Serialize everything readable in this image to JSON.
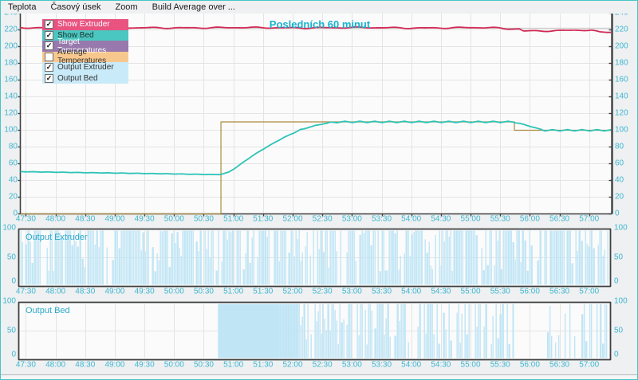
{
  "menu": {
    "items": [
      {
        "label": "Teplota"
      },
      {
        "label": "Časový úsek"
      },
      {
        "label": "Zoom"
      },
      {
        "label": "Build Average over ..."
      }
    ]
  },
  "legend": {
    "items": [
      {
        "label": "Show Extruder",
        "checked": true,
        "bg": "#e85380",
        "text": "#ffffff"
      },
      {
        "label": "Show Bed",
        "checked": true,
        "bg": "#4ac7c0",
        "text": "#20302f"
      },
      {
        "label": "Target Temperatures",
        "checked": true,
        "bg": "#9879ad",
        "text": "#ffffff"
      },
      {
        "label": "Average Temperatures",
        "checked": false,
        "bg": "#f7c88e",
        "text": "#333333"
      },
      {
        "label": "Output Extruder",
        "checked": true,
        "bg": "#c9eaf8",
        "text": "#333333"
      },
      {
        "label": "Output Bed",
        "checked": true,
        "bg": "#c9eaf8",
        "text": "#333333"
      }
    ]
  },
  "chart_data": [
    {
      "id": "temperature",
      "type": "line",
      "title": "Posledních 60 minut",
      "x_tick_labels": [
        "47:30",
        "48:00",
        "48:30",
        "49:00",
        "49:30",
        "50:00",
        "50:30",
        "51:00",
        "51:30",
        "52:00",
        "52:30",
        "53:00",
        "53:30",
        "54:00",
        "54:30",
        "55:00",
        "55:30",
        "56:00",
        "56:30",
        "57:00"
      ],
      "x_domain_seconds": [
        2844,
        3442
      ],
      "y_ticks": [
        0,
        20,
        40,
        60,
        80,
        100,
        120,
        140,
        160,
        180,
        200,
        220,
        240
      ],
      "ylim": [
        0,
        241
      ],
      "grid": true,
      "axis_label_color": "#3fb6d2",
      "series": [
        {
          "name": "target-extruder",
          "color": "#c7c7c7",
          "width": 1.2,
          "points": [
            [
              2844,
              222
            ],
            [
              3442,
              222
            ]
          ]
        },
        {
          "name": "target-bed",
          "color": "#ab8a3e",
          "width": 1.2,
          "points": [
            [
              2844,
              0
            ],
            [
              3047,
              0
            ],
            [
              3047,
              110
            ],
            [
              3344,
              110
            ],
            [
              3344,
              100
            ],
            [
              3442,
              100
            ]
          ]
        },
        {
          "name": "bed",
          "color": "#2ec3b7",
          "width": 1.8,
          "ripple": {
            "amp": 0.85,
            "period": 15
          },
          "points": [
            [
              2844,
              50.5
            ],
            [
              2900,
              49.5
            ],
            [
              2990,
              48
            ],
            [
              3040,
              47
            ],
            [
              3047,
              47.2
            ],
            [
              3055,
              50
            ],
            [
              3063,
              56
            ],
            [
              3071,
              63
            ],
            [
              3079,
              69.5
            ],
            [
              3087,
              75.5
            ],
            [
              3095,
              81
            ],
            [
              3103,
              86.5
            ],
            [
              3111,
              91.5
            ],
            [
              3119,
              96
            ],
            [
              3127,
              100
            ],
            [
              3135,
              103.2
            ],
            [
              3143,
              105.8
            ],
            [
              3151,
              107.8
            ],
            [
              3159,
              109.2
            ],
            [
              3167,
              110
            ],
            [
              3344,
              110
            ],
            [
              3374,
              100
            ],
            [
              3442,
              100
            ]
          ]
        },
        {
          "name": "extruder",
          "color": "#d22a56",
          "width": 1.8,
          "wiggle": {
            "a": [
              0.5,
              0.35,
              0.25
            ],
            "f": [
              0.18,
              0.053,
              0.31
            ],
            "p": [
              0,
              2,
              1
            ]
          },
          "points": [
            [
              2844,
              222.3
            ],
            [
              2900,
              222.8
            ],
            [
              2960,
              222.2
            ],
            [
              3020,
              222.8
            ],
            [
              3080,
              222.4
            ],
            [
              3140,
              222.8
            ],
            [
              3200,
              222.4
            ],
            [
              3260,
              222.6
            ],
            [
              3320,
              222.4
            ],
            [
              3336,
              221.3
            ],
            [
              3349,
              221.4
            ],
            [
              3353,
              218.9
            ],
            [
              3380,
              219.2
            ],
            [
              3410,
              219.6
            ],
            [
              3422,
              219.4
            ],
            [
              3430,
              216.8
            ],
            [
              3438,
              216.9
            ],
            [
              3442,
              217.2
            ]
          ]
        }
      ]
    },
    {
      "id": "output-extruder",
      "type": "pwm-bars",
      "label": "Output Extruder",
      "ylim": [
        0,
        100
      ],
      "y_ticks": [
        0,
        50,
        100
      ],
      "bar_color": "#c0e5f5",
      "segments": [
        {
          "from": 2844,
          "to": 3442,
          "mode": "pwm",
          "density": 0.8,
          "full_ratio": 0.55,
          "seed": 5
        }
      ]
    },
    {
      "id": "output-bed",
      "type": "pwm-bars",
      "label": "Output Bed",
      "ylim": [
        0,
        100
      ],
      "y_ticks": [
        0,
        50,
        100
      ],
      "bar_color": "#c0e5f5",
      "segments": [
        {
          "from": 2844,
          "to": 3044,
          "mode": "zero"
        },
        {
          "from": 3044,
          "to": 3106,
          "mode": "solid",
          "value": 100
        },
        {
          "from": 3106,
          "to": 3124,
          "mode": "slits",
          "density": 0.9,
          "seed": 17
        },
        {
          "from": 3124,
          "to": 3344,
          "mode": "pwm",
          "density": 0.74,
          "full_ratio": 0.42,
          "seed": 11
        },
        {
          "from": 3344,
          "to": 3377,
          "mode": "zero"
        },
        {
          "from": 3377,
          "to": 3442,
          "mode": "pwm",
          "density": 0.62,
          "full_ratio": 0.38,
          "seed": 23
        }
      ]
    }
  ],
  "colors": {
    "window_border": "#45c5c7",
    "window_bg": "#eef0f1",
    "plot_bg": "#fbfbfb",
    "gridline": "#e4e4e4",
    "axis": "#3f3f3f"
  }
}
